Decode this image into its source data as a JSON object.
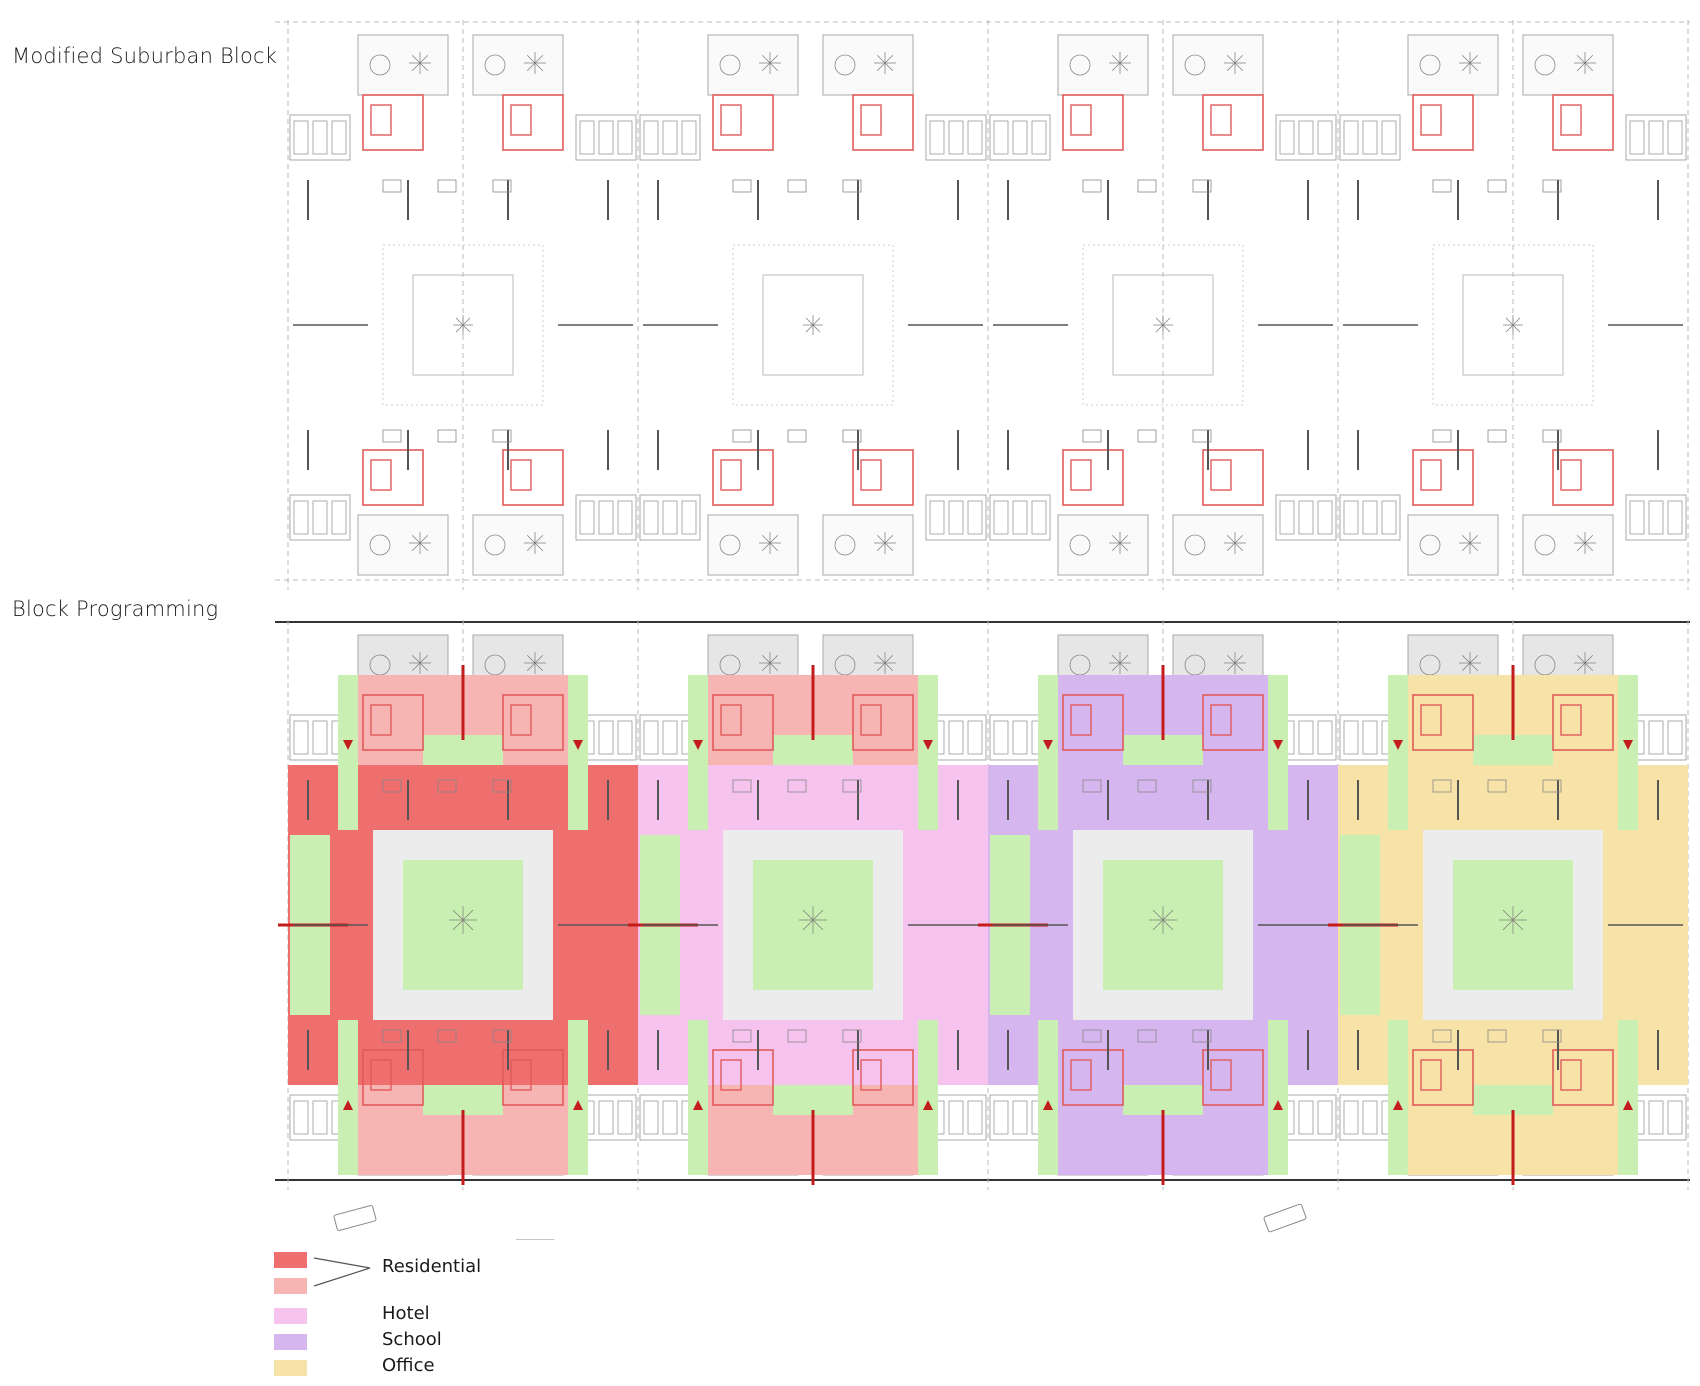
{
  "titles": {
    "top": "Modified Suburban Block",
    "bottom": "Block Programming"
  },
  "colors": {
    "residential_dark": "#ef6e6e",
    "residential_light": "#f6b5b3",
    "hotel": "#f6c3ee",
    "school": "#d6b6ef",
    "office": "#f7e2a8",
    "green": "#c9f0b2",
    "red_line": "#e05b5b",
    "arrow_red": "#c41c1c",
    "wall": "#555555"
  },
  "legend": [
    {
      "key": "residential_dark",
      "label": "Residential"
    },
    {
      "key": "residential_light",
      "label": ""
    },
    {
      "key": "hotel",
      "label": "Hotel"
    },
    {
      "key": "school",
      "label": "School"
    },
    {
      "key": "office",
      "label": "Office"
    }
  ],
  "blocks": [
    {
      "key": "residential"
    },
    {
      "key": "hotel"
    },
    {
      "key": "school"
    },
    {
      "key": "office"
    }
  ]
}
